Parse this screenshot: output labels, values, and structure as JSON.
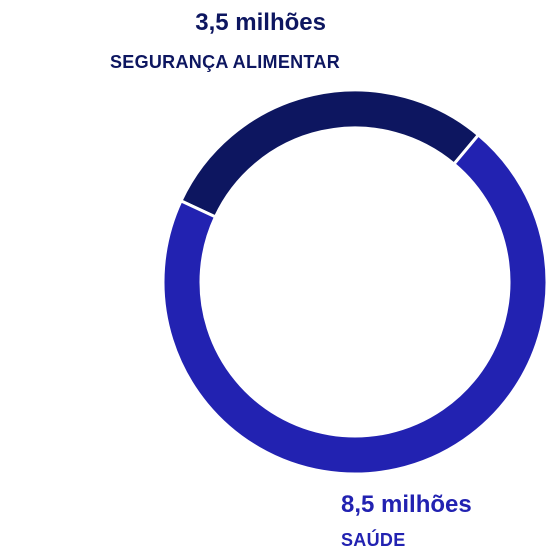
{
  "chart_data": {
    "type": "pie",
    "donut": true,
    "slices": [
      {
        "name": "SEGURANÇA ALIMENTAR",
        "value": 3.5,
        "value_label": "3,5 milhões",
        "color": "#0d1660"
      },
      {
        "name": "SAÚDE",
        "value": 8.5,
        "value_label": "8,5 milhões",
        "color": "#2222b1"
      }
    ]
  }
}
